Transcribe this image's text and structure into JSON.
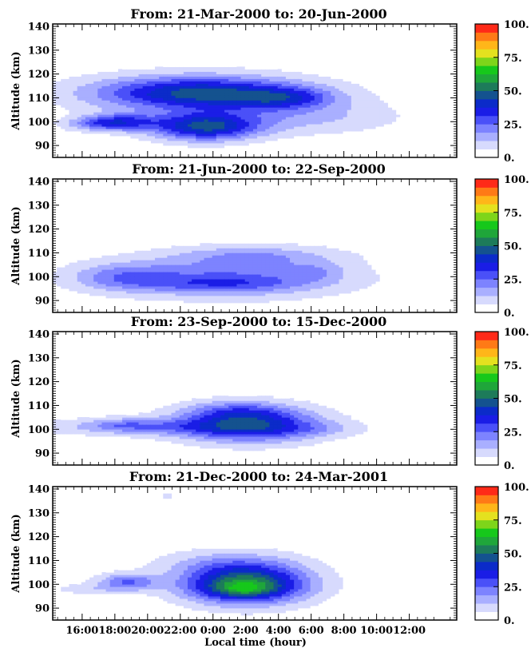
{
  "chart_data": {
    "type": "heatmap",
    "xlabel": "Local time (hour)",
    "ylabel": "Altitude (km)",
    "x_ticks": [
      "16:00",
      "18:00",
      "20:00",
      "22:00",
      "0:00",
      "2:00",
      "4:00",
      "6:00",
      "8:00",
      "10:00",
      "12:00"
    ],
    "x_tick_hours": [
      16,
      18,
      20,
      22,
      24,
      26,
      28,
      30,
      32,
      34,
      36
    ],
    "xlim_hours": [
      14.2,
      38.9
    ],
    "y_ticks": [
      90,
      100,
      110,
      120,
      130,
      140
    ],
    "ylim": [
      85,
      141
    ],
    "colorbar": {
      "ticks": [
        "0.",
        "25.",
        "50.",
        "75.",
        "100."
      ],
      "range": [
        0,
        100
      ],
      "colormap": [
        "#ffffff",
        "#d7dafd",
        "#a9afff",
        "#7d83ff",
        "#4a50f8",
        "#1a1de6",
        "#0b2bc9",
        "#14528f",
        "#1d7b5a",
        "#1fa63a",
        "#16c81b",
        "#7ed51a",
        "#e4e11f",
        "#ffb619",
        "#ff7a16",
        "#ff2a18"
      ]
    },
    "panels": [
      {
        "title": "From: 21-Mar-2000  to: 20-Jun-2000",
        "blobs": [
          {
            "t": 23.2,
            "h": 112,
            "st": 4.5,
            "sh": 5,
            "a": 48
          },
          {
            "t": 23.5,
            "h": 98,
            "st": 2.3,
            "sh": 4,
            "a": 45
          },
          {
            "t": 18.3,
            "h": 100,
            "st": 1.6,
            "sh": 2.5,
            "a": 28
          },
          {
            "t": 28.5,
            "h": 110,
            "st": 2.0,
            "sh": 3,
            "a": 20
          },
          {
            "t": 29.5,
            "h": 102,
            "st": 4.0,
            "sh": 5,
            "a": 12
          },
          {
            "t": 16.8,
            "h": 99,
            "st": 1.5,
            "sh": 2,
            "a": 12
          }
        ]
      },
      {
        "title": "From: 21-Jun-2000  to: 22-Sep-2000",
        "blobs": [
          {
            "t": 25.0,
            "h": 100,
            "st": 5.0,
            "sh": 6,
            "a": 22
          },
          {
            "t": 18.5,
            "h": 100,
            "st": 2.2,
            "sh": 4,
            "a": 16
          },
          {
            "t": 24.5,
            "h": 97,
            "st": 3.5,
            "sh": 2.5,
            "a": 13
          },
          {
            "t": 26.5,
            "h": 109,
            "st": 3.5,
            "sh": 3,
            "a": 13
          },
          {
            "t": 30.2,
            "h": 102,
            "st": 1.2,
            "sh": 2.5,
            "a": 9
          }
        ]
      },
      {
        "title": "From: 23-Sep-2000  to: 15-Dec-2000",
        "blobs": [
          {
            "t": 26.2,
            "h": 102,
            "st": 3.0,
            "sh": 5,
            "a": 42
          },
          {
            "t": 25.5,
            "h": 108,
            "st": 2.2,
            "sh": 3,
            "a": 14
          },
          {
            "t": 20.0,
            "h": 101,
            "st": 4.5,
            "sh": 2.5,
            "a": 16
          },
          {
            "t": 18.5,
            "h": 102,
            "st": 1.4,
            "sh": 1.8,
            "a": 10
          },
          {
            "t": 30.5,
            "h": 100,
            "st": 2.0,
            "sh": 2,
            "a": 6
          }
        ]
      },
      {
        "title": "From: 21-Dec-2000  to: 24-Mar-2001",
        "blobs": [
          {
            "t": 26.0,
            "h": 100,
            "st": 2.6,
            "sh": 5.5,
            "a": 58
          },
          {
            "t": 25.8,
            "h": 98,
            "st": 1.3,
            "sh": 2,
            "a": 14
          },
          {
            "t": 18.8,
            "h": 101,
            "st": 1.3,
            "sh": 2.5,
            "a": 24
          },
          {
            "t": 25.0,
            "h": 109,
            "st": 3.0,
            "sh": 4,
            "a": 12
          },
          {
            "t": 16.2,
            "h": 98,
            "st": 1.5,
            "sh": 1.5,
            "a": 8
          },
          {
            "t": 21.2,
            "h": 137,
            "st": 0.3,
            "sh": 1.5,
            "a": 5
          }
        ]
      }
    ]
  }
}
